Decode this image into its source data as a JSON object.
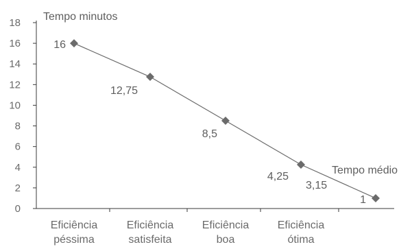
{
  "chart_data": {
    "type": "line",
    "y_axis_title": "Tempo minutos",
    "x_axis_title": "Tempo médio",
    "ylim": [
      0,
      18
    ],
    "y_ticks": [
      0,
      2,
      4,
      6,
      8,
      10,
      12,
      14,
      16,
      18
    ],
    "grid": false,
    "categories": [
      [
        "Eficiência",
        "péssima"
      ],
      [
        "Eficiência",
        "satisfeita"
      ],
      [
        "Eficiência",
        "boa"
      ],
      [
        "Eficiência",
        "ótima"
      ]
    ],
    "points": [
      {
        "x": 1,
        "y": 16,
        "label": "16"
      },
      {
        "x": 2,
        "y": 12.75,
        "label": "12,75"
      },
      {
        "x": 3,
        "y": 8.5,
        "label": "8,5"
      },
      {
        "x": 4,
        "y": 4.25,
        "label": "4,25"
      },
      {
        "x": 5,
        "y": 1,
        "label": "1"
      }
    ],
    "extra_labels": [
      {
        "text": "3,15"
      }
    ],
    "colors": {
      "line": "#6b6b6b",
      "marker": "#6b6b6b",
      "axis": "#3a3a3a",
      "text": "#5e5e5e"
    }
  }
}
